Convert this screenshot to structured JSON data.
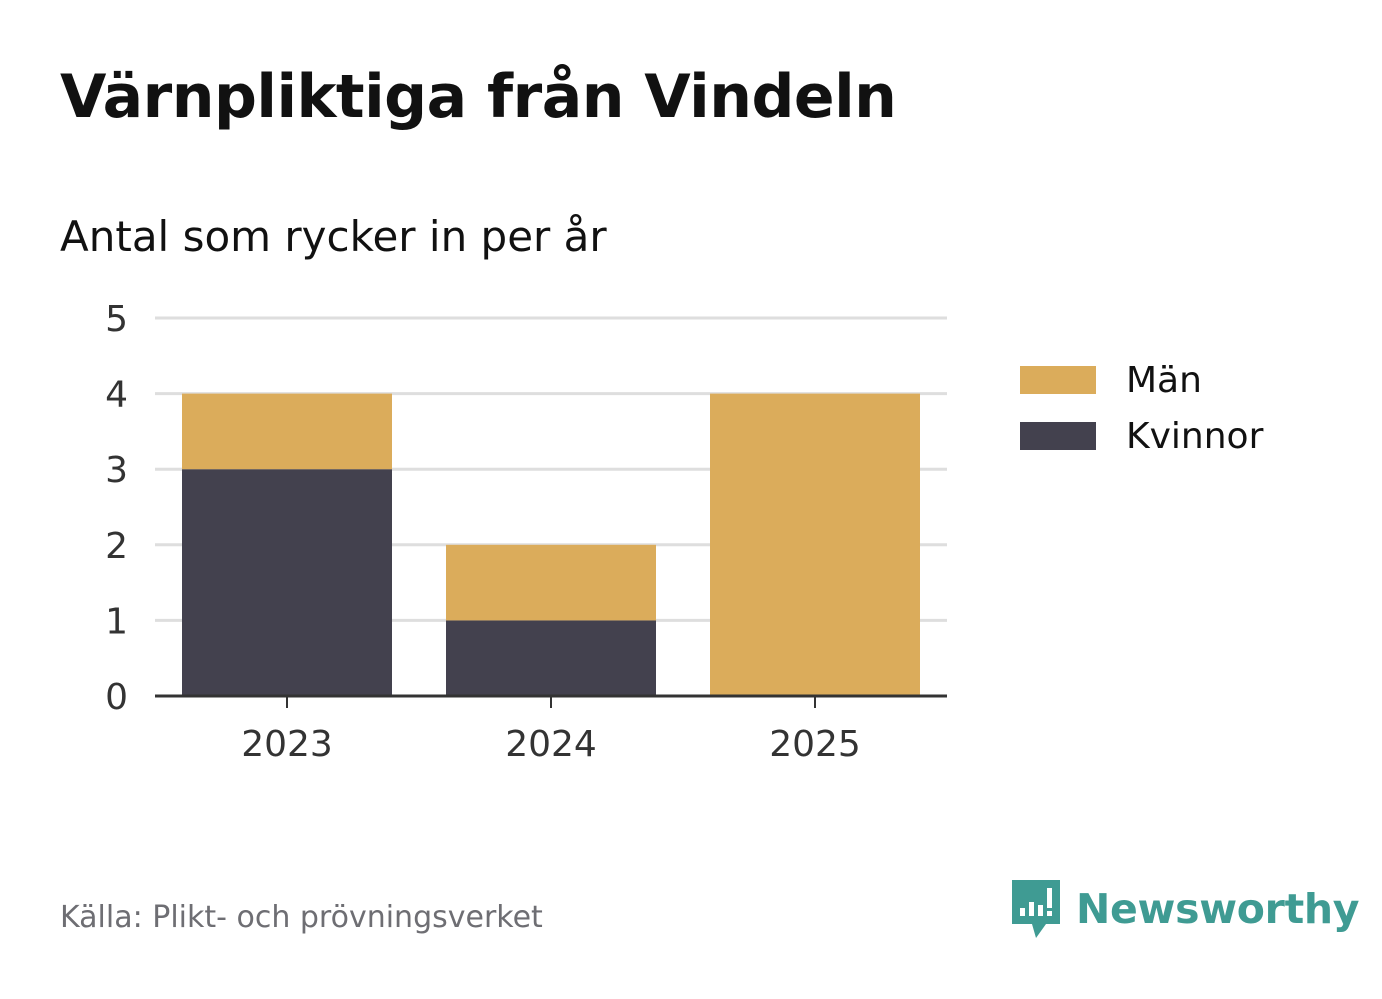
{
  "title": "Värnpliktiga från Vindeln",
  "subtitle": "Antal som rycker in per år",
  "source": "Källa: Plikt- och prövningsverket",
  "brand": {
    "name": "Newsworthy",
    "icon": "newsworthy-logo-icon",
    "color": "#3f9b93"
  },
  "chart_data": {
    "type": "bar",
    "stacked": true,
    "categories": [
      "2023",
      "2024",
      "2025"
    ],
    "series": [
      {
        "name": "Kvinnor",
        "values": [
          3,
          1,
          0
        ],
        "color": "#43414e"
      },
      {
        "name": "Män",
        "values": [
          1,
          1,
          4
        ],
        "color": "#dbac5b"
      }
    ],
    "ylim": [
      0,
      5
    ],
    "yticks": [
      0,
      1,
      2,
      3,
      4,
      5
    ],
    "grid": true,
    "legend_position": "right"
  }
}
